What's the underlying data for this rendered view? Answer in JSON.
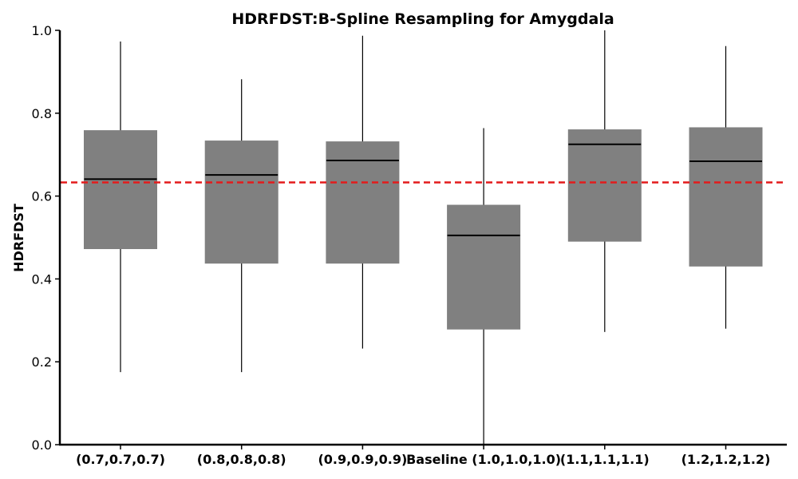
{
  "chart_data": {
    "type": "box",
    "title": "HDRFDST:B-Spline Resampling for Amygdala",
    "xlabel": "",
    "ylabel": "HDRFDST",
    "ylim": [
      0.0,
      1.0
    ],
    "yticks": [
      "0.0",
      "0.2",
      "0.4",
      "0.6",
      "0.8",
      "1.0"
    ],
    "categories": [
      "(0.7,0.7,0.7)",
      "(0.8,0.8,0.8)",
      "(0.9,0.9,0.9)",
      "Baseline (1.0,1.0,1.0)",
      "(1.1,1.1,1.1)",
      "(1.2,1.2,1.2)"
    ],
    "boxes": [
      {
        "whisker_low": 0.175,
        "q1": 0.473,
        "median": 0.641,
        "q3": 0.758,
        "whisker_high": 0.973
      },
      {
        "whisker_low": 0.175,
        "q1": 0.438,
        "median": 0.651,
        "q3": 0.733,
        "whisker_high": 0.882
      },
      {
        "whisker_low": 0.232,
        "q1": 0.438,
        "median": 0.686,
        "q3": 0.731,
        "whisker_high": 0.987
      },
      {
        "whisker_low": 0.0,
        "q1": 0.279,
        "median": 0.505,
        "q3": 0.578,
        "whisker_high": 0.764
      },
      {
        "whisker_low": 0.272,
        "q1": 0.491,
        "median": 0.725,
        "q3": 0.76,
        "whisker_high": 1.0
      },
      {
        "whisker_low": 0.28,
        "q1": 0.431,
        "median": 0.684,
        "q3": 0.765,
        "whisker_high": 0.962
      }
    ],
    "reference_line": {
      "value": 0.633,
      "style": "dashed",
      "color": "#e31a1c"
    },
    "box_color": "#808080",
    "grid": false
  }
}
